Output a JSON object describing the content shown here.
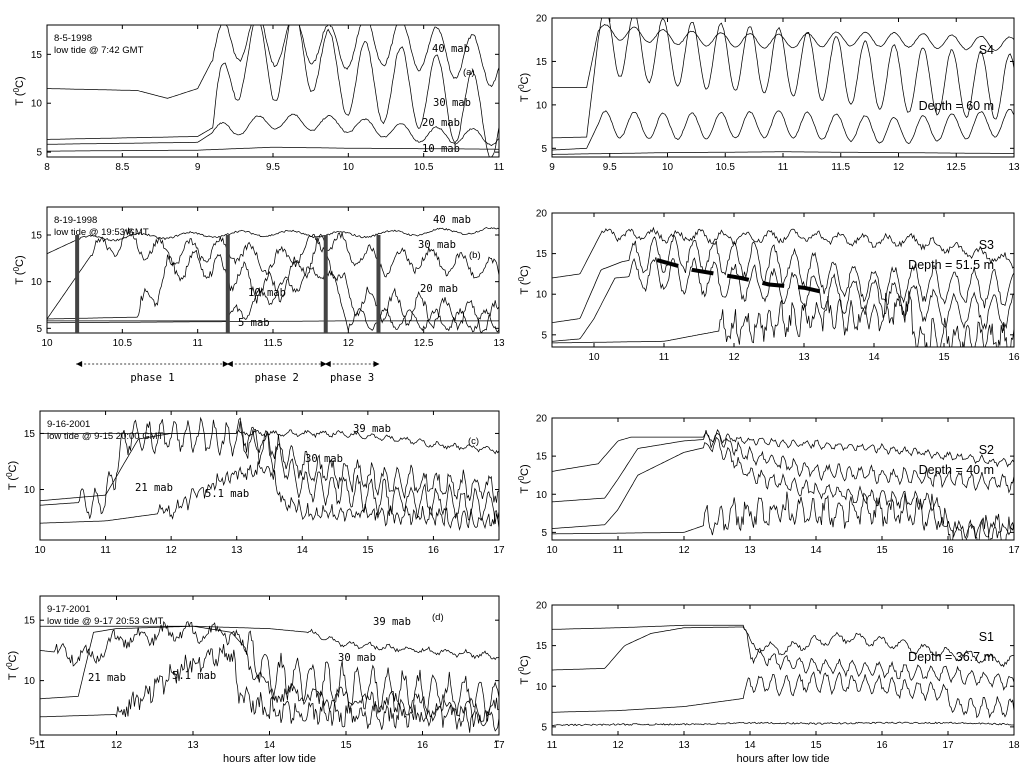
{
  "chart_data": [
    {
      "id": "a",
      "type": "line",
      "header": "8-5-1998",
      "header2": "low tide @ 7:42 GMT",
      "panel_letter": "(a)",
      "ylabel": "T (°C)",
      "xlim": [
        8,
        11
      ],
      "ylim": [
        4.5,
        18
      ],
      "xticks": [
        "8",
        "8.5",
        "9",
        "9.5",
        "10",
        "10.5",
        "11"
      ],
      "yticks": [
        "5",
        "10",
        "15"
      ],
      "series": [
        {
          "name": "40 mab",
          "x": [
            8,
            8.6,
            8.8,
            9.0,
            9.1,
            9.2,
            9.35,
            9.5,
            9.7,
            9.9,
            10.1,
            10.4,
            10.7,
            11.0
          ],
          "y": [
            11.5,
            11.3,
            10.5,
            11.5,
            14.5,
            16.5,
            17.0,
            16.2,
            16.8,
            15.5,
            16.5,
            16.0,
            15.0,
            14.0
          ]
        },
        {
          "name": "30 mab",
          "x": [
            8,
            9.0,
            9.1,
            9.3,
            9.5,
            9.7,
            9.9,
            10.2,
            10.5,
            11.0
          ],
          "y": [
            6.3,
            6.6,
            7.5,
            15.5,
            14.0,
            16.0,
            13.0,
            12.0,
            11.5,
            8.0
          ]
        },
        {
          "name": "20 mab",
          "x": [
            8,
            9.0,
            9.1,
            9.5,
            10.0,
            10.5,
            11.0
          ],
          "y": [
            5.8,
            6.0,
            7.0,
            8.2,
            7.8,
            6.8,
            6.5
          ]
        },
        {
          "name": "10 mab",
          "x": [
            8,
            9.0,
            9.5,
            10.0,
            11.0
          ],
          "y": [
            5.1,
            5.2,
            5.5,
            5.4,
            5.3
          ]
        }
      ],
      "annotations": [
        "40 mab",
        "30 mab",
        "20 mab",
        "10 mab"
      ]
    },
    {
      "id": "S4",
      "type": "line",
      "station": "S4",
      "depth": "Depth = 60 m",
      "ylabel": "T (°C)",
      "xlim": [
        9,
        13
      ],
      "ylim": [
        4,
        20
      ],
      "xticks": [
        "9",
        "9.5",
        "10",
        "10.5",
        "11",
        "11.5",
        "12",
        "12.5",
        "13"
      ],
      "yticks": [
        "5",
        "10",
        "15",
        "20"
      ],
      "series": [
        {
          "name": "",
          "x": [
            9,
            9.3,
            9.4,
            10.0,
            10.5,
            11.0,
            11.5,
            12.0,
            12.5,
            13.0
          ],
          "y": [
            12,
            12,
            18.5,
            17.8,
            17.5,
            17.3,
            17.6,
            17.5,
            17.2,
            17.0
          ]
        },
        {
          "name": "",
          "x": [
            9,
            9.3,
            9.4,
            10.0,
            10.5,
            11.0,
            11.5,
            12.0,
            12.5,
            13.0
          ],
          "y": [
            6.2,
            6.3,
            17.5,
            16.0,
            15.5,
            15.0,
            14.0,
            13.0,
            12.5,
            12.0
          ]
        },
        {
          "name": "",
          "x": [
            9,
            9.3,
            9.4,
            10.0,
            11.0,
            12.0,
            13.0
          ],
          "y": [
            4.8,
            5.0,
            7.8,
            7.5,
            7.8,
            7.0,
            8.0
          ]
        },
        {
          "name": "",
          "x": [
            9,
            10,
            11,
            12,
            13
          ],
          "y": [
            4.3,
            4.5,
            4.6,
            4.5,
            4.4
          ]
        }
      ]
    },
    {
      "id": "b",
      "type": "line",
      "header": "8-19-1998",
      "header2": "low tide @ 19:53 GMT",
      "panel_letter": "(b)",
      "ylabel": "T (°C)",
      "xlim": [
        10,
        13
      ],
      "ylim": [
        4.5,
        18
      ],
      "xticks": [
        "10",
        "10.5",
        "11",
        "11.5",
        "12",
        "12.5",
        "13"
      ],
      "yticks": [
        "5",
        "10",
        "15"
      ],
      "phase_lines": [
        10.2,
        11.2,
        11.85,
        12.2
      ],
      "phases": [
        {
          "label": "phase 1",
          "from": 10.2,
          "to": 11.2
        },
        {
          "label": "phase 2",
          "from": 11.2,
          "to": 11.85
        },
        {
          "label": "phase 3",
          "from": 11.85,
          "to": 12.2
        }
      ],
      "series": [
        {
          "name": "40 mab",
          "x": [
            10,
            10.2,
            10.5,
            11.0,
            11.5,
            12.0,
            12.5,
            13.0
          ],
          "y": [
            13.0,
            14.5,
            14.8,
            15.0,
            15.2,
            15.0,
            15.3,
            15.5
          ]
        },
        {
          "name": "30 mab",
          "x": [
            10,
            10.3,
            10.5,
            10.8,
            11.2,
            11.5,
            11.85,
            12.2,
            12.5,
            13.0
          ],
          "y": [
            6.0,
            13.0,
            14.5,
            13.0,
            13.5,
            12.0,
            14.5,
            12.0,
            12.5,
            11.0
          ]
        },
        {
          "name": "20 mab",
          "x": [
            10,
            10.6,
            10.8,
            11.0,
            11.5,
            11.85,
            12.0,
            12.5,
            13.0
          ],
          "y": [
            6.0,
            6.2,
            11.0,
            12.0,
            9.0,
            14.0,
            8.0,
            7.0,
            6.0
          ]
        },
        {
          "name": "10 mab",
          "x": [
            10,
            11.2,
            11.4,
            11.6,
            11.85,
            12.0,
            13.0
          ],
          "y": [
            5.8,
            5.8,
            8.0,
            9.5,
            11.5,
            6.0,
            5.8
          ]
        },
        {
          "name": "5 mab",
          "x": [
            10,
            11.0,
            12.0,
            13.0
          ],
          "y": [
            5.6,
            5.7,
            5.8,
            5.8
          ]
        }
      ],
      "annotations": [
        "40 mab",
        "30 mab",
        "20 mab",
        "10 mab",
        "5 mab"
      ]
    },
    {
      "id": "S3",
      "type": "line",
      "station": "S3",
      "depth": "Depth = 51.5 m",
      "ylabel": "T (°C)",
      "xlim": [
        9.4,
        16
      ],
      "ylim": [
        3.5,
        20
      ],
      "xticks": [
        "10",
        "11",
        "12",
        "13",
        "14",
        "15",
        "16"
      ],
      "yticks": [
        "5",
        "10",
        "15",
        "20"
      ],
      "series": [
        {
          "name": "",
          "x": [
            9.4,
            9.8,
            10.1,
            11.0,
            12.0,
            13.0,
            14.0,
            14.5,
            15.0,
            15.5,
            16.0
          ],
          "y": [
            12.0,
            12.5,
            17.5,
            17.2,
            17.0,
            17.2,
            16.5,
            16.8,
            15.8,
            15.0,
            14.0
          ]
        },
        {
          "name": "",
          "x": [
            9.4,
            9.8,
            10.1,
            10.4,
            11.0,
            12.0,
            13.0,
            14.0,
            14.5,
            15.0,
            16.0
          ],
          "y": [
            6.5,
            7.0,
            13.0,
            14.0,
            15.0,
            14.5,
            13.0,
            11.0,
            11.5,
            11.0,
            10.5
          ]
        },
        {
          "name": "",
          "x": [
            9.4,
            9.8,
            10.0,
            10.3,
            11.0,
            12.0,
            13.0,
            14.0,
            14.5,
            15.0,
            16.0
          ],
          "y": [
            4.2,
            4.5,
            7.0,
            12.0,
            12.5,
            11.5,
            10.5,
            9.5,
            9.5,
            8.0,
            7.8
          ]
        },
        {
          "name": "",
          "x": [
            9.4,
            11.0,
            11.8,
            12.5,
            13.0,
            13.5,
            14.0,
            14.5,
            14.6,
            16.0
          ],
          "y": [
            4.0,
            4.2,
            5.5,
            6.5,
            7.0,
            7.5,
            7.5,
            8.5,
            4.5,
            4.2
          ]
        }
      ],
      "dashed_line": {
        "x": [
          10.9,
          11.4,
          12.1,
          12.5,
          13.0,
          13.4
        ],
        "y": [
          14.2,
          13.0,
          12.0,
          11.2,
          10.8,
          10.0
        ]
      }
    },
    {
      "id": "c",
      "type": "line",
      "header": "9-16-2001",
      "header2": "low tide @ 9-15 20:00  GMT",
      "panel_letter": "(c)",
      "ylabel": "T (°C)",
      "xlim": [
        10,
        17
      ],
      "ylim": [
        5.5,
        17
      ],
      "xticks": [
        "10",
        "11",
        "12",
        "13",
        "14",
        "15",
        "16",
        "17"
      ],
      "yticks": [
        "10",
        "15"
      ],
      "series": [
        {
          "name": "39 mab",
          "x": [
            10,
            11.0,
            12.0,
            13.0,
            14.0,
            14.5,
            15.0,
            15.5,
            16.0,
            17.0
          ],
          "y": [
            15.0,
            15.0,
            15.0,
            15.0,
            15.0,
            15.0,
            14.8,
            14.5,
            14.0,
            13.5
          ]
        },
        {
          "name": "30 mab",
          "x": [
            10,
            11.0,
            11.5,
            12.0,
            13.0,
            13.5,
            14.0,
            14.5,
            15.0,
            16.0,
            17.0
          ],
          "y": [
            9.0,
            9.5,
            14.5,
            15.0,
            15.0,
            14.0,
            12.0,
            11.5,
            11.0,
            10.5,
            10.0
          ]
        },
        {
          "name": "21 mab",
          "x": [
            10,
            11.0,
            11.3,
            12.0,
            13.0,
            13.5,
            14.0,
            15.0,
            16.0,
            17.0
          ],
          "y": [
            8.6,
            9.0,
            14.5,
            14.8,
            14.5,
            13.5,
            10.5,
            9.5,
            9.0,
            8.5
          ]
        },
        {
          "name": "5.1 mab",
          "x": [
            10,
            11.0,
            12.0,
            12.5,
            13.0,
            13.5,
            13.7,
            14.0,
            15.0,
            16.0,
            17.0
          ],
          "y": [
            7.0,
            7.2,
            8.0,
            10.0,
            11.5,
            12.0,
            9.0,
            8.0,
            7.8,
            7.5,
            7.3
          ]
        }
      ],
      "annotations": [
        "39 mab",
        "30 mab",
        "21 mab",
        "5.1 mab"
      ]
    },
    {
      "id": "S2",
      "type": "line",
      "station": "S2",
      "depth": "Depth = 40 m",
      "ylabel": "T (°C)",
      "xlim": [
        10,
        17
      ],
      "ylim": [
        4,
        20
      ],
      "xticks": [
        "10",
        "11",
        "12",
        "13",
        "14",
        "15",
        "16",
        "17"
      ],
      "yticks": [
        "5",
        "10",
        "15",
        "20"
      ],
      "series": [
        {
          "name": "",
          "x": [
            10,
            10.7,
            11.0,
            11.2,
            12.0,
            12.5,
            13.0,
            14.0,
            15.0,
            16.0,
            17.0
          ],
          "y": [
            13.0,
            14.0,
            17.0,
            17.5,
            17.5,
            17.5,
            17.0,
            16.5,
            16.0,
            15.0,
            14.0
          ]
        },
        {
          "name": "",
          "x": [
            10,
            10.8,
            11.0,
            11.3,
            12.0,
            12.5,
            13.0,
            14.0,
            15.0,
            16.0,
            17.0
          ],
          "y": [
            9.0,
            9.5,
            12.0,
            16.0,
            17.0,
            17.3,
            15.0,
            13.0,
            12.5,
            12.0,
            11.5
          ]
        },
        {
          "name": "",
          "x": [
            10,
            10.8,
            11.0,
            11.3,
            12.0,
            12.5,
            13.0,
            14.0,
            15.0,
            15.8,
            16.0,
            17.0
          ],
          "y": [
            5.5,
            6.0,
            8.0,
            12.5,
            15.5,
            16.5,
            12.5,
            10.5,
            9.5,
            9.0,
            5.5,
            5.3
          ]
        },
        {
          "name": "",
          "x": [
            10,
            12.0,
            12.5,
            13.0,
            14.0,
            15.0,
            15.8,
            16.0,
            17.0
          ],
          "y": [
            4.8,
            5.0,
            6.5,
            7.5,
            7.8,
            7.8,
            7.5,
            5.0,
            5.0
          ]
        }
      ]
    },
    {
      "id": "d",
      "type": "line",
      "header": "9-17-2001",
      "header2": "low tide @ 9-17 20:53  GMT",
      "panel_letter": "(d)",
      "ylabel": "T (°C)",
      "xlabel": "hours after low tide",
      "xlim": [
        11,
        17
      ],
      "ylim": [
        5.5,
        17
      ],
      "xticks": [
        "11",
        "12",
        "13",
        "14",
        "15",
        "16",
        "17"
      ],
      "yticks": [
        "5",
        "10",
        "15"
      ],
      "series": [
        {
          "name": "39 mab",
          "x": [
            11,
            12.0,
            13.0,
            14.0,
            14.5,
            15.0,
            16.0,
            17.0
          ],
          "y": [
            14.5,
            14.5,
            14.5,
            14.3,
            14.0,
            13.0,
            12.5,
            12.0
          ]
        },
        {
          "name": "30 mab",
          "x": [
            11,
            11.5,
            11.7,
            12.0,
            13.0,
            13.5,
            14.0,
            15.0,
            16.0,
            17.0
          ],
          "y": [
            8.5,
            8.7,
            14.0,
            14.3,
            14.5,
            14.0,
            10.5,
            9.5,
            9.0,
            8.5
          ]
        },
        {
          "name": "21 mab",
          "x": [
            11,
            11.7,
            12.0,
            13.0,
            13.5,
            14.0,
            15.0,
            16.0,
            17.0
          ],
          "y": [
            12.5,
            12.0,
            13.5,
            14.0,
            14.0,
            9.0,
            8.5,
            8.0,
            7.5
          ]
        },
        {
          "name": "5.1 mab",
          "x": [
            11,
            12.0,
            12.5,
            13.0,
            13.5,
            13.6,
            14.0,
            15.0,
            16.0,
            17.0
          ],
          "y": [
            7.0,
            7.2,
            9.5,
            11.5,
            12.5,
            9.0,
            7.5,
            7.2,
            7.0,
            6.8
          ]
        }
      ],
      "annotations": [
        "39 mab",
        "30 mab",
        "21 mab",
        "5.1 mab"
      ]
    },
    {
      "id": "S1",
      "type": "line",
      "station": "S1",
      "depth": "Depth = 36.7 m",
      "ylabel": "T (°C)",
      "xlabel": "hours after low tide",
      "xlim": [
        11,
        18
      ],
      "ylim": [
        4,
        20
      ],
      "xticks": [
        "11",
        "12",
        "13",
        "14",
        "15",
        "16",
        "17",
        "18"
      ],
      "yticks": [
        "5",
        "10",
        "15",
        "20"
      ],
      "series": [
        {
          "name": "",
          "x": [
            11,
            12.0,
            13.0,
            13.9,
            14.0,
            14.5,
            15.0,
            15.5,
            16.0,
            17.0,
            18.0
          ],
          "y": [
            17.0,
            17.2,
            17.5,
            17.5,
            15.0,
            14.5,
            15.5,
            16.0,
            15.5,
            14.0,
            13.0
          ]
        },
        {
          "name": "",
          "x": [
            11,
            11.8,
            12.1,
            12.5,
            13.0,
            13.9,
            14.0,
            14.5,
            15.0,
            16.0,
            17.0,
            18.0
          ],
          "y": [
            12.0,
            12.2,
            15.0,
            16.5,
            17.2,
            17.3,
            14.0,
            13.0,
            12.5,
            12.0,
            11.5,
            10.5
          ]
        },
        {
          "name": "",
          "x": [
            11,
            12.0,
            13.0,
            13.9,
            14.0,
            14.5,
            15.0,
            16.0,
            17.0,
            17.1,
            18.0
          ],
          "y": [
            6.8,
            7.0,
            7.5,
            8.5,
            10.5,
            10.0,
            10.5,
            10.0,
            9.0,
            7.5,
            7.3
          ]
        },
        {
          "name": "",
          "x": [
            11,
            12.0,
            13.0,
            14.0,
            15.0,
            16.0,
            17.0,
            18.0
          ],
          "y": [
            5.2,
            5.3,
            5.3,
            5.5,
            5.4,
            5.5,
            5.5,
            5.3
          ]
        }
      ]
    }
  ],
  "labels": {
    "ylabel_text": "T (",
    "ylabel_sup": "0",
    "ylabel_tail": "C)",
    "xlabel_left": "hours after low tide",
    "xlabel_right": "hours after low tide"
  }
}
